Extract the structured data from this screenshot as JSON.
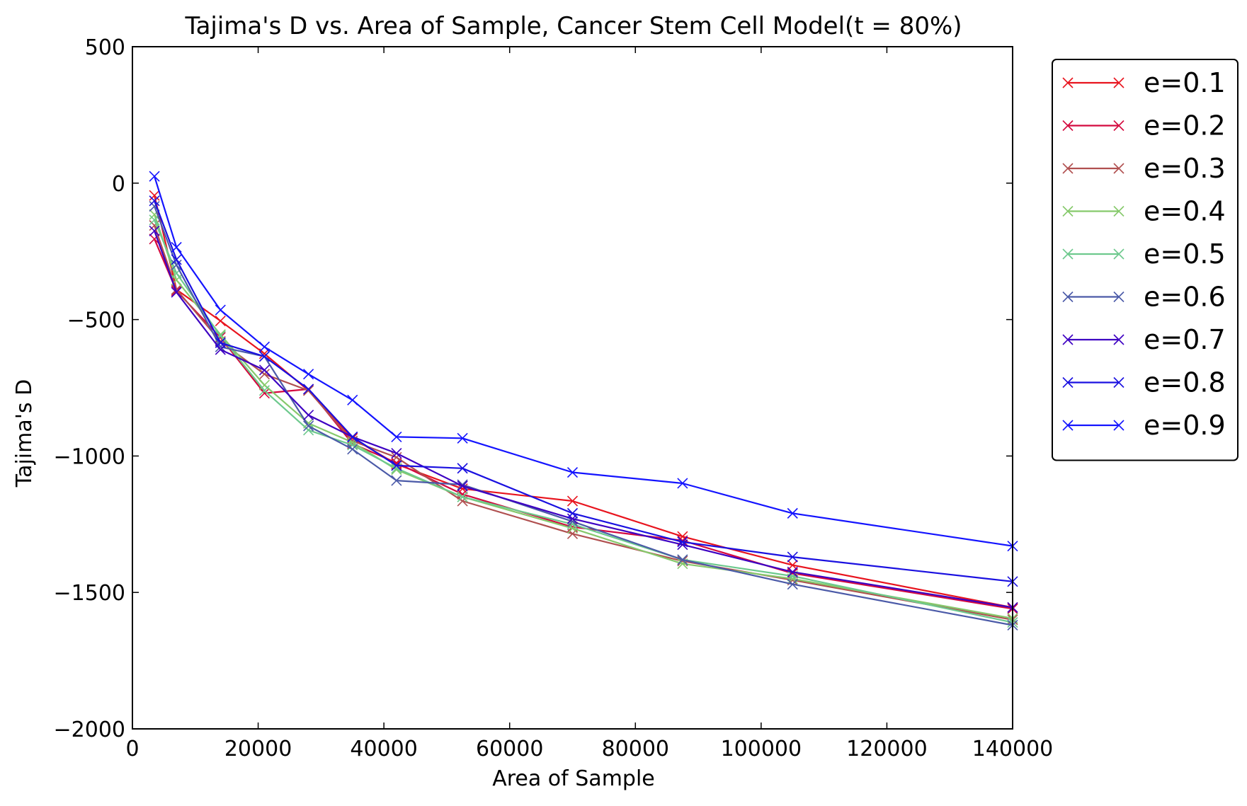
{
  "chart_data": {
    "type": "line",
    "title": "Tajima's D vs. Area of Sample, Cancer Stem Cell Model(t = 80%)",
    "xlabel": "Area of Sample",
    "ylabel": "Tajima's D",
    "xlim": [
      0,
      140000
    ],
    "ylim": [
      -2000,
      500
    ],
    "xticks": [
      0,
      20000,
      40000,
      60000,
      80000,
      100000,
      120000,
      140000
    ],
    "xtick_labels": [
      "0",
      "20000",
      "40000",
      "60000",
      "80000",
      "100000",
      "120000",
      "140000"
    ],
    "yticks": [
      -2000,
      -1500,
      -1000,
      -500,
      0,
      500
    ],
    "ytick_labels": [
      "−2000",
      "−1500",
      "−1000",
      "−500",
      "0",
      "500"
    ],
    "grid": false,
    "legend_position": "outside-right-top",
    "marker": "x",
    "x": [
      3500,
      7000,
      14000,
      21000,
      28000,
      35000,
      42000,
      52500,
      70000,
      87500,
      105000,
      140000
    ],
    "series": [
      {
        "name": "e=0.1",
        "color": "#e8141e",
        "values": [
          -45,
          -390,
          -505,
          -625,
          -760,
          -935,
          -1030,
          -1120,
          -1165,
          -1295,
          -1400,
          -1555
        ]
      },
      {
        "name": "e=0.2",
        "color": "#d4093f",
        "values": [
          -205,
          -395,
          -565,
          -770,
          -755,
          -955,
          -1025,
          -1140,
          -1260,
          -1310,
          -1430,
          -1560
        ]
      },
      {
        "name": "e=0.3",
        "color": "#b05050",
        "values": [
          -155,
          -390,
          -580,
          -700,
          -760,
          -945,
          -1005,
          -1165,
          -1285,
          -1385,
          -1455,
          -1600
        ]
      },
      {
        "name": "e=0.4",
        "color": "#86c96b",
        "values": [
          -115,
          -355,
          -555,
          -740,
          -880,
          -950,
          -1050,
          -1150,
          -1265,
          -1395,
          -1450,
          -1595
        ]
      },
      {
        "name": "e=0.5",
        "color": "#6dc98d",
        "values": [
          -135,
          -330,
          -560,
          -760,
          -905,
          -960,
          -1045,
          -1150,
          -1250,
          -1380,
          -1440,
          -1610
        ]
      },
      {
        "name": "e=0.6",
        "color": "#4b5aa8",
        "values": [
          -85,
          -300,
          -600,
          -635,
          -890,
          -975,
          -1090,
          -1105,
          -1240,
          -1380,
          -1470,
          -1620
        ]
      },
      {
        "name": "e=0.7",
        "color": "#3d00c2",
        "values": [
          -175,
          -400,
          -610,
          -685,
          -850,
          -930,
          -990,
          -1110,
          -1230,
          -1325,
          -1425,
          -1555
        ]
      },
      {
        "name": "e=0.8",
        "color": "#1a10e0",
        "values": [
          -65,
          -280,
          -585,
          -635,
          -755,
          -930,
          -1035,
          -1045,
          -1210,
          -1315,
          -1370,
          -1460
        ]
      },
      {
        "name": "e=0.9",
        "color": "#1414ff",
        "values": [
          25,
          -235,
          -465,
          -600,
          -700,
          -795,
          -930,
          -935,
          -1060,
          -1100,
          -1210,
          -1330
        ]
      }
    ]
  }
}
